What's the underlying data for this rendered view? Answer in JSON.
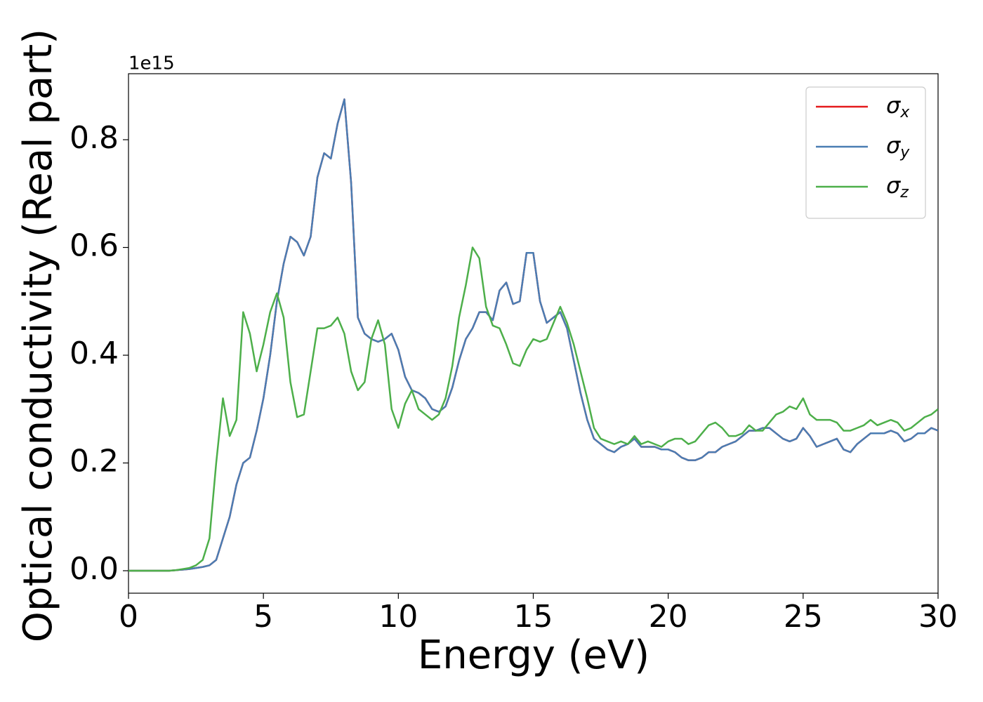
{
  "chart_data": {
    "type": "line",
    "x_label": "Energy (eV)",
    "y_label": "Optical conductivity (Real part)",
    "y_offset_label": "1e15",
    "xlim": [
      0,
      30
    ],
    "ylim": [
      -0.0417,
      0.9225
    ],
    "xticks": [
      0,
      5,
      10,
      15,
      20,
      25,
      30
    ],
    "yticks": [
      {
        "value": 0,
        "label": "0.0"
      },
      0.2,
      0.4,
      0.6,
      0.8
    ],
    "legend": "upper right",
    "x": [
      0,
      0.25,
      0.5,
      0.75,
      1,
      1.25,
      1.5,
      1.75,
      2,
      2.25,
      2.5,
      2.75,
      3,
      3.25,
      3.5,
      3.75,
      4,
      4.25,
      4.5,
      4.75,
      5,
      5.25,
      5.5,
      5.75,
      6,
      6.25,
      6.5,
      6.75,
      7,
      7.25,
      7.5,
      7.75,
      8,
      8.25,
      8.5,
      8.75,
      9,
      9.25,
      9.5,
      9.75,
      10,
      10.25,
      10.5,
      10.75,
      11,
      11.25,
      11.5,
      11.75,
      12,
      12.25,
      12.5,
      12.75,
      13,
      13.25,
      13.5,
      13.75,
      14,
      14.25,
      14.5,
      14.75,
      15,
      15.25,
      15.5,
      15.75,
      16,
      16.25,
      16.5,
      16.75,
      17,
      17.25,
      17.5,
      17.75,
      18,
      18.25,
      18.5,
      18.75,
      19,
      19.25,
      19.5,
      19.75,
      20,
      20.25,
      20.5,
      20.75,
      21,
      21.25,
      21.5,
      21.75,
      22,
      22.25,
      22.5,
      22.75,
      23,
      23.25,
      23.5,
      23.75,
      24,
      24.25,
      24.5,
      24.75,
      25,
      25.25,
      25.5,
      25.75,
      26,
      26.25,
      26.5,
      26.75,
      27,
      27.25,
      27.5,
      27.75,
      28,
      28.25,
      28.5,
      28.75,
      29,
      29.25,
      29.5,
      29.75,
      30
    ],
    "series": [
      {
        "name": "σx",
        "color": "#e41a1c",
        "values": [
          0,
          0,
          0,
          0,
          0,
          0,
          0,
          0.001,
          0.002,
          0.003,
          0.005,
          0.007,
          0.01,
          0.02,
          0.06,
          0.1,
          0.16,
          0.2,
          0.21,
          0.26,
          0.32,
          0.4,
          0.5,
          0.57,
          0.62,
          0.61,
          0.585,
          0.62,
          0.73,
          0.775,
          0.765,
          0.83,
          0.875,
          0.72,
          0.47,
          0.44,
          0.43,
          0.425,
          0.43,
          0.44,
          0.41,
          0.36,
          0.335,
          0.33,
          0.32,
          0.3,
          0.295,
          0.305,
          0.34,
          0.39,
          0.43,
          0.45,
          0.48,
          0.48,
          0.465,
          0.52,
          0.535,
          0.495,
          0.5,
          0.59,
          0.59,
          0.5,
          0.46,
          0.47,
          0.48,
          0.45,
          0.39,
          0.33,
          0.28,
          0.245,
          0.235,
          0.225,
          0.22,
          0.23,
          0.235,
          0.245,
          0.23,
          0.23,
          0.23,
          0.225,
          0.225,
          0.22,
          0.21,
          0.205,
          0.205,
          0.21,
          0.22,
          0.22,
          0.23,
          0.235,
          0.24,
          0.25,
          0.26,
          0.26,
          0.265,
          0.265,
          0.255,
          0.245,
          0.24,
          0.245,
          0.265,
          0.25,
          0.23,
          0.235,
          0.24,
          0.245,
          0.225,
          0.22,
          0.235,
          0.245,
          0.255,
          0.255,
          0.255,
          0.26,
          0.255,
          0.24,
          0.245,
          0.255,
          0.255,
          0.265,
          0.26
        ]
      },
      {
        "name": "σy",
        "color": "#4a7db3",
        "values": [
          0,
          0,
          0,
          0,
          0,
          0,
          0,
          0.001,
          0.002,
          0.003,
          0.005,
          0.007,
          0.01,
          0.02,
          0.06,
          0.1,
          0.16,
          0.2,
          0.21,
          0.26,
          0.32,
          0.4,
          0.5,
          0.57,
          0.62,
          0.61,
          0.585,
          0.62,
          0.73,
          0.775,
          0.765,
          0.83,
          0.875,
          0.72,
          0.47,
          0.44,
          0.43,
          0.425,
          0.43,
          0.44,
          0.41,
          0.36,
          0.335,
          0.33,
          0.32,
          0.3,
          0.295,
          0.305,
          0.34,
          0.39,
          0.43,
          0.45,
          0.48,
          0.48,
          0.465,
          0.52,
          0.535,
          0.495,
          0.5,
          0.59,
          0.59,
          0.5,
          0.46,
          0.47,
          0.48,
          0.45,
          0.39,
          0.33,
          0.28,
          0.245,
          0.235,
          0.225,
          0.22,
          0.23,
          0.235,
          0.245,
          0.23,
          0.23,
          0.23,
          0.225,
          0.225,
          0.22,
          0.21,
          0.205,
          0.205,
          0.21,
          0.22,
          0.22,
          0.23,
          0.235,
          0.24,
          0.25,
          0.26,
          0.26,
          0.265,
          0.265,
          0.255,
          0.245,
          0.24,
          0.245,
          0.265,
          0.25,
          0.23,
          0.235,
          0.24,
          0.245,
          0.225,
          0.22,
          0.235,
          0.245,
          0.255,
          0.255,
          0.255,
          0.26,
          0.255,
          0.24,
          0.245,
          0.255,
          0.255,
          0.265,
          0.26
        ]
      },
      {
        "name": "σz",
        "color": "#4daf4a",
        "values": [
          0,
          0,
          0,
          0,
          0,
          0,
          0,
          0.001,
          0.003,
          0.005,
          0.01,
          0.02,
          0.06,
          0.2,
          0.32,
          0.25,
          0.28,
          0.48,
          0.44,
          0.37,
          0.42,
          0.48,
          0.515,
          0.47,
          0.35,
          0.285,
          0.29,
          0.37,
          0.45,
          0.45,
          0.455,
          0.47,
          0.44,
          0.37,
          0.335,
          0.35,
          0.43,
          0.465,
          0.42,
          0.3,
          0.265,
          0.31,
          0.335,
          0.3,
          0.29,
          0.28,
          0.29,
          0.32,
          0.38,
          0.47,
          0.53,
          0.6,
          0.58,
          0.49,
          0.455,
          0.45,
          0.42,
          0.385,
          0.38,
          0.41,
          0.43,
          0.425,
          0.43,
          0.46,
          0.49,
          0.46,
          0.42,
          0.37,
          0.32,
          0.265,
          0.245,
          0.24,
          0.235,
          0.24,
          0.235,
          0.25,
          0.235,
          0.24,
          0.235,
          0.23,
          0.24,
          0.245,
          0.245,
          0.235,
          0.24,
          0.255,
          0.27,
          0.275,
          0.265,
          0.25,
          0.25,
          0.255,
          0.27,
          0.26,
          0.26,
          0.275,
          0.29,
          0.295,
          0.305,
          0.3,
          0.32,
          0.29,
          0.28,
          0.28,
          0.28,
          0.275,
          0.26,
          0.26,
          0.265,
          0.27,
          0.28,
          0.27,
          0.275,
          0.28,
          0.275,
          0.26,
          0.265,
          0.275,
          0.285,
          0.29,
          0.3
        ]
      }
    ]
  }
}
